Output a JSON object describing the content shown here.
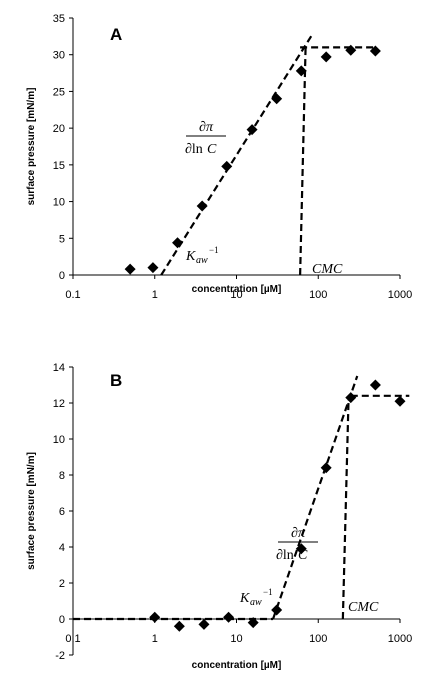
{
  "chart_data": [
    {
      "type": "scatter",
      "panel_label": "A",
      "xlabel": "concentration [µM]",
      "ylabel": "surface pressure [mN/m]",
      "x_scale": "log",
      "xlim": [
        0.1,
        1000
      ],
      "ylim": [
        0,
        35
      ],
      "x_tick_labels": [
        "0.1",
        "1",
        "10",
        "100",
        "1000"
      ],
      "y_tick_labels": [
        "0",
        "5",
        "10",
        "15",
        "20",
        "25",
        "30",
        "35"
      ],
      "x_ticks": [
        0.1,
        1,
        10,
        100,
        1000
      ],
      "y_ticks": [
        0,
        5,
        10,
        15,
        20,
        25,
        30,
        35
      ],
      "points": [
        {
          "x": 0.5,
          "y": 0.8
        },
        {
          "x": 0.95,
          "y": 1.0
        },
        {
          "x": 1.9,
          "y": 4.4
        },
        {
          "x": 3.8,
          "y": 9.4
        },
        {
          "x": 7.6,
          "y": 14.8
        },
        {
          "x": 15.5,
          "y": 19.8
        },
        {
          "x": 31,
          "y": 24.0
        },
        {
          "x": 62,
          "y": 27.8
        },
        {
          "x": 125,
          "y": 29.7
        },
        {
          "x": 250,
          "y": 30.6
        },
        {
          "x": 500,
          "y": 30.5
        }
      ],
      "fit_lines": [
        {
          "from": [
            1.2,
            0
          ],
          "to": [
            85,
            32.8
          ]
        },
        {
          "from": [
            60,
            31
          ],
          "to": [
            500,
            31
          ]
        },
        {
          "from": [
            60,
            0
          ],
          "to": [
            70,
            31
          ]
        }
      ],
      "annotations": {
        "slope_num": "∂π",
        "slope_den_prefix": "∂ln",
        "slope_den_var": "C",
        "kaw_main": "K",
        "kaw_sub": "aw",
        "kaw_sup": "−1",
        "cmc": "CMC"
      },
      "marker_color": "#000000"
    },
    {
      "type": "scatter",
      "panel_label": "B",
      "xlabel": "concentration [µM]",
      "ylabel": "surface pressure [mN/m]",
      "x_scale": "log",
      "xlim": [
        0.1,
        1000
      ],
      "ylim": [
        -2,
        14
      ],
      "x_tick_labels": [
        "0.1",
        "1",
        "10",
        "100",
        "1000"
      ],
      "y_tick_labels": [
        "-2",
        "0",
        "2",
        "4",
        "6",
        "8",
        "10",
        "12",
        "14"
      ],
      "x_ticks": [
        0.1,
        1,
        10,
        100,
        1000
      ],
      "y_ticks": [
        -2,
        0,
        2,
        4,
        6,
        8,
        10,
        12,
        14
      ],
      "points": [
        {
          "x": 1,
          "y": 0.1
        },
        {
          "x": 2,
          "y": -0.4
        },
        {
          "x": 4,
          "y": -0.3
        },
        {
          "x": 8,
          "y": 0.1
        },
        {
          "x": 16,
          "y": -0.2
        },
        {
          "x": 31,
          "y": 0.5
        },
        {
          "x": 62,
          "y": 3.9
        },
        {
          "x": 125,
          "y": 8.4
        },
        {
          "x": 250,
          "y": 12.3
        },
        {
          "x": 500,
          "y": 13.0
        },
        {
          "x": 1000,
          "y": 12.1
        }
      ],
      "fit_lines": [
        {
          "from": [
            0.1,
            0
          ],
          "to": [
            28,
            0
          ]
        },
        {
          "from": [
            28,
            0
          ],
          "to": [
            300,
            13.5
          ]
        },
        {
          "from": [
            250,
            12.4
          ],
          "to": [
            1300,
            12.4
          ]
        },
        {
          "from": [
            200,
            0
          ],
          "to": [
            235,
            12.3
          ]
        }
      ],
      "annotations": {
        "slope_num": "∂π",
        "slope_den_prefix": "∂ln",
        "slope_den_var": "C",
        "kaw_main": "K",
        "kaw_sub": "aw",
        "kaw_sup": "−1",
        "cmc": "CMC"
      },
      "marker_color": "#000000"
    }
  ]
}
